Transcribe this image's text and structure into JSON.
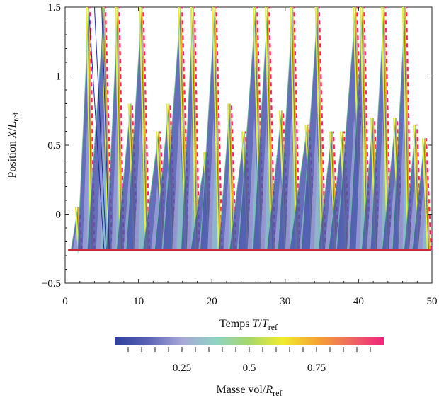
{
  "chart_data": {
    "type": "heatmap",
    "title": "",
    "xlabel": {
      "prefix": "Temps ",
      "var": "T",
      "slash": "/",
      "var2": "T",
      "sub": "ref"
    },
    "ylabel": {
      "prefix": "Position ",
      "var": "X",
      "slash": "/",
      "var2": "L",
      "sub": "ref"
    },
    "xlim": [
      0,
      50
    ],
    "ylim": [
      -0.5,
      1.5
    ],
    "x_ticks": [
      {
        "value": 0,
        "label": "0"
      },
      {
        "value": 10,
        "label": "10"
      },
      {
        "value": 20,
        "label": "20"
      },
      {
        "value": 30,
        "label": "30"
      },
      {
        "value": 40,
        "label": "40"
      },
      {
        "value": 50,
        "label": "50"
      }
    ],
    "y_ticks": [
      {
        "value": -0.5,
        "label": "−0.5"
      },
      {
        "value": 0,
        "label": "0"
      },
      {
        "value": 0.5,
        "label": "0.5"
      },
      {
        "value": 1,
        "label": "1"
      },
      {
        "value": 1.5,
        "label": "1.5"
      }
    ],
    "baseline_y": -0.26,
    "colorbar": {
      "label": {
        "prefix": "Masse vol/",
        "var": "R",
        "sub": "ref"
      },
      "range": [
        0,
        1
      ],
      "ticks": [
        {
          "value": 0.25,
          "label": "0.25"
        },
        {
          "value": 0.5,
          "label": "0.5"
        },
        {
          "value": 0.75,
          "label": "0.75"
        }
      ],
      "colors": [
        "#2e3f9e",
        "#5b63b5",
        "#a7a8d8",
        "#8fd3c4",
        "#a6d86a",
        "#f2ec2e",
        "#f6a531",
        "#ef6a60",
        "#f0247e"
      ]
    },
    "bursts": [
      {
        "t0": 0.8,
        "t1": 2.1,
        "peak": 0.05
      },
      {
        "t0": 1.7,
        "t1": 3.8,
        "peak": 1.5
      },
      {
        "t0": 3.0,
        "t1": 6.2,
        "peak": 1.5
      },
      {
        "t0": 5.6,
        "t1": 7.8,
        "peak": 1.5
      },
      {
        "t0": 7.0,
        "t1": 9.7,
        "peak": 0.8
      },
      {
        "t0": 8.3,
        "t1": 11.3,
        "peak": 1.5
      },
      {
        "t0": 10.6,
        "t1": 13.6,
        "peak": 0.6
      },
      {
        "t0": 12.2,
        "t1": 14.9,
        "peak": 0.8
      },
      {
        "t0": 13.3,
        "t1": 16.7,
        "peak": 1.5
      },
      {
        "t0": 15.8,
        "t1": 18.1,
        "peak": 1.5
      },
      {
        "t0": 17.1,
        "t1": 20.0,
        "peak": 0.45
      },
      {
        "t0": 18.4,
        "t1": 21.2,
        "peak": 1.5
      },
      {
        "t0": 20.9,
        "t1": 23.1,
        "peak": 0.8
      },
      {
        "t0": 22.4,
        "t1": 25.2,
        "peak": 0.6
      },
      {
        "t0": 23.6,
        "t1": 26.9,
        "peak": 1.5
      },
      {
        "t0": 25.6,
        "t1": 28.4,
        "peak": 1.5
      },
      {
        "t0": 27.5,
        "t1": 30.3,
        "peak": 0.75
      },
      {
        "t0": 29.0,
        "t1": 31.8,
        "peak": 1.5
      },
      {
        "t0": 30.6,
        "t1": 34.0,
        "peak": 0.65
      },
      {
        "t0": 32.2,
        "t1": 35.3,
        "peak": 1.5
      },
      {
        "t0": 34.5,
        "t1": 37.1,
        "peak": 0.6
      },
      {
        "t0": 35.9,
        "t1": 38.6,
        "peak": 0.6
      },
      {
        "t0": 37.0,
        "t1": 40.6,
        "peak": 1.5
      },
      {
        "t0": 38.7,
        "t1": 41.3,
        "peak": 1.5
      },
      {
        "t0": 40.4,
        "t1": 42.6,
        "peak": 0.7
      },
      {
        "t0": 41.6,
        "t1": 44.2,
        "peak": 1.5
      },
      {
        "t0": 43.2,
        "t1": 45.8,
        "peak": 0.7
      },
      {
        "t0": 44.6,
        "t1": 47.0,
        "peak": 1.5
      },
      {
        "t0": 46.2,
        "t1": 48.4,
        "peak": 0.65
      },
      {
        "t0": 47.3,
        "t1": 49.7,
        "peak": 0.55
      }
    ]
  }
}
